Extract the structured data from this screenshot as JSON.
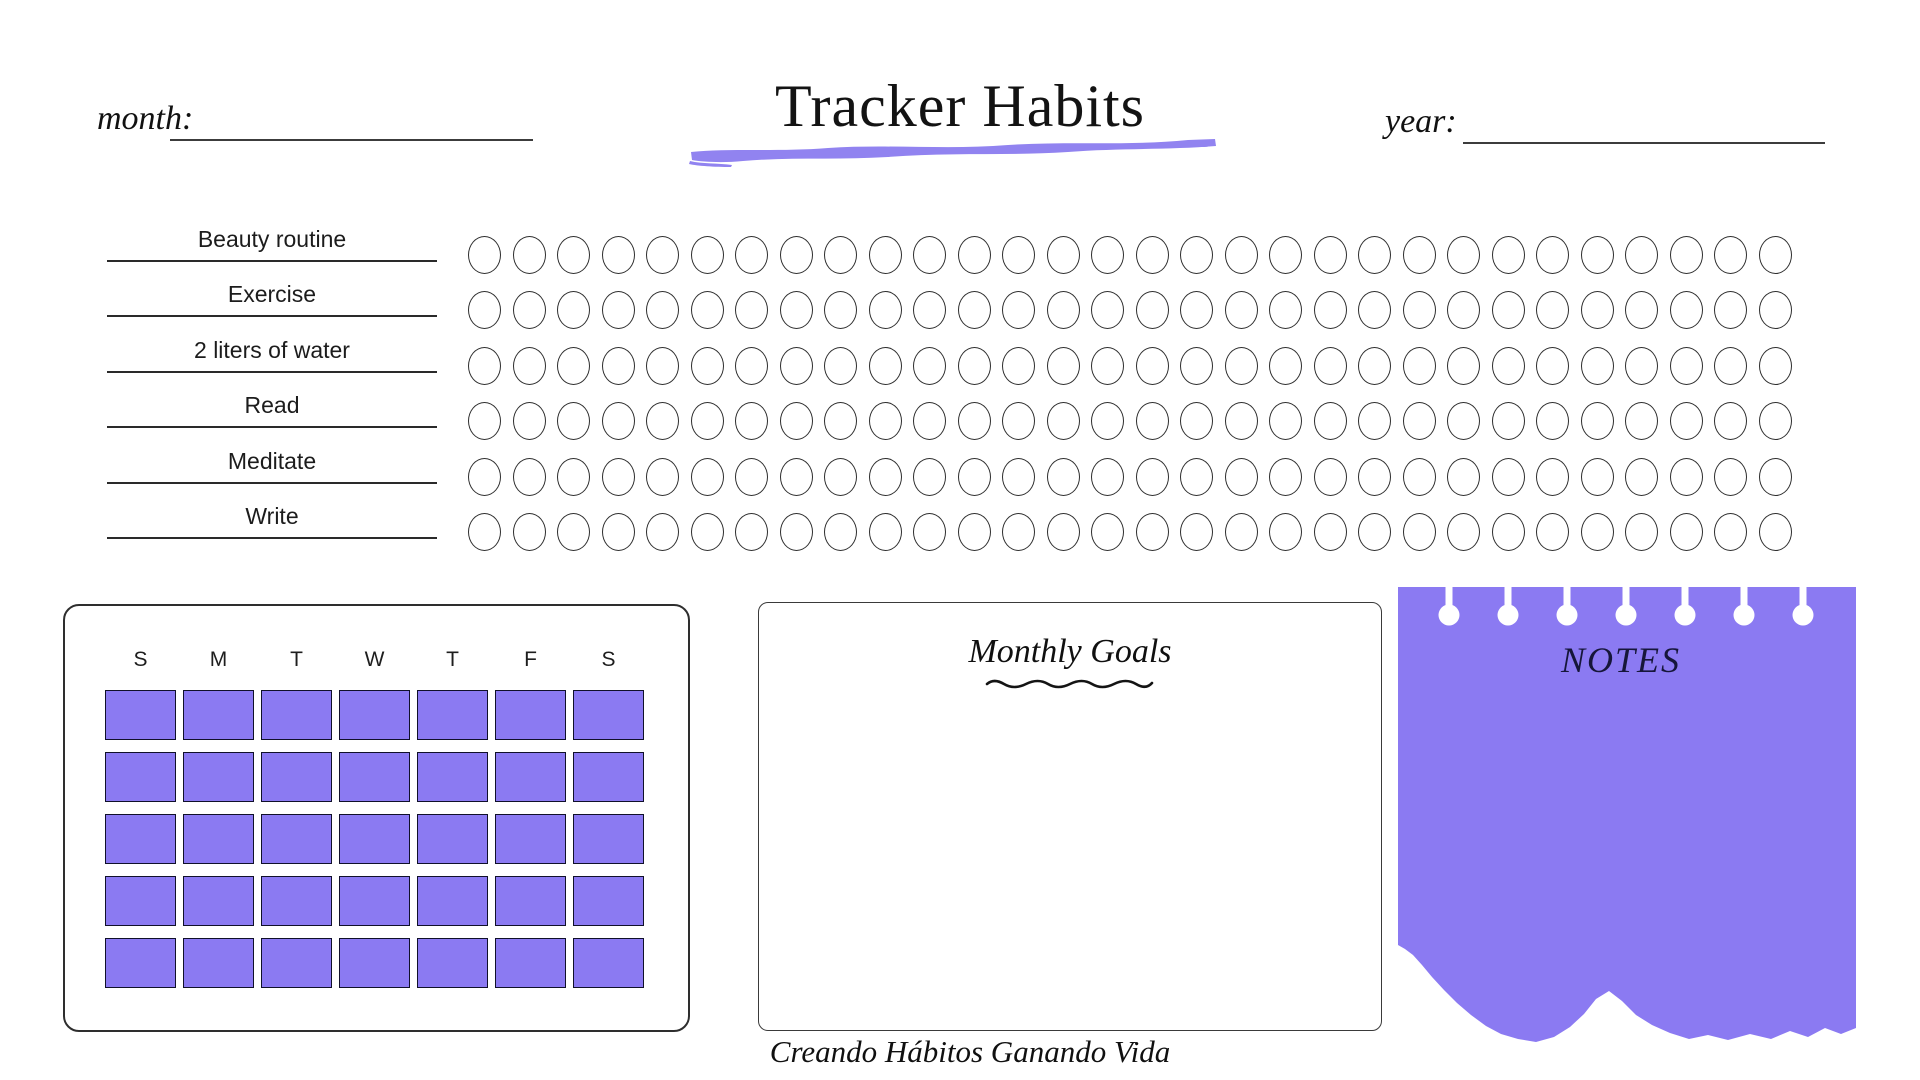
{
  "page": {
    "title": "Tracker Habits",
    "background": "#ffffff",
    "accent": "#8b7af2",
    "brush_color": "#9183f0",
    "ink": "#1f1f1f"
  },
  "header": {
    "month_label": "month:",
    "month_value": "",
    "year_label": "year:",
    "year_value": ""
  },
  "tracker": {
    "days_per_row": 30,
    "habits": [
      "Beauty routine",
      "Exercise",
      "2 liters of water",
      "Read",
      "Meditate",
      "Write"
    ]
  },
  "calendar": {
    "weekdays": [
      "S",
      "M",
      "T",
      "W",
      "T",
      "F",
      "S"
    ],
    "weeks": 5,
    "days_per_week": 7,
    "square_color": "#8b7af2"
  },
  "goals": {
    "title": "Monthly Goals",
    "content": ""
  },
  "notes": {
    "title": "NOTES",
    "holes": 7,
    "paper_color": "#8b7af2",
    "content": ""
  },
  "footer": {
    "motto": "Creando Hábitos Ganando Vida"
  },
  "icons": {
    "title_underline": "brush-stroke-underline-icon",
    "goals_underline": "wavy-underline-icon",
    "notes_hole": "punch-hole-icon"
  }
}
